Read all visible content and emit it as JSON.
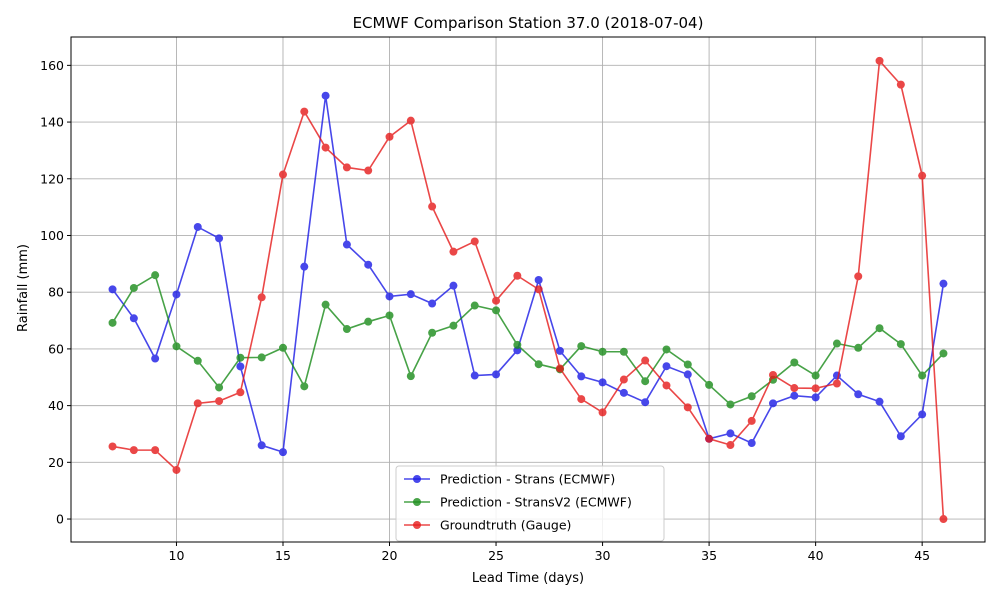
{
  "chart_data": {
    "type": "line",
    "title": "ECMWF Comparison Station 37.0 (2018-07-04)",
    "xlabel": "Lead Time (days)",
    "ylabel": "Rainfall (mm)",
    "xlim": [
      5.05,
      47.95
    ],
    "ylim": [
      -8.1,
      170.0
    ],
    "xticks": [
      10,
      15,
      20,
      25,
      30,
      35,
      40,
      45
    ],
    "yticks": [
      0,
      20,
      40,
      60,
      80,
      100,
      120,
      140,
      160
    ],
    "grid": true,
    "legend_position": "lower center",
    "x": [
      7,
      8,
      9,
      10,
      11,
      12,
      13,
      14,
      15,
      16,
      17,
      18,
      19,
      20,
      21,
      22,
      23,
      24,
      25,
      26,
      27,
      28,
      29,
      30,
      31,
      32,
      33,
      34,
      35,
      36,
      37,
      38,
      39,
      40,
      41,
      42,
      43,
      44,
      45,
      46
    ],
    "series": [
      {
        "name": "Prediction - Strans (ECMWF)",
        "color": "#1a1ae6",
        "values": [
          81,
          70.8,
          56.6,
          79.2,
          103,
          99,
          53.8,
          26,
          23.6,
          89,
          149.3,
          96.8,
          89.7,
          78.5,
          79.3,
          76,
          82.3,
          50.6,
          51,
          59.5,
          84.3,
          59.3,
          50.3,
          48.2,
          44.5,
          41.2,
          53.9,
          51,
          28.3,
          30.2,
          26.8,
          40.8,
          43.5,
          42.9,
          50.6,
          44,
          41.4,
          29.2,
          36.9,
          83
        ]
      },
      {
        "name": "Prediction - StransV2 (ECMWF)",
        "color": "#1a8c1a",
        "values": [
          69.2,
          81.5,
          86,
          60.9,
          55.8,
          46.4,
          56.9,
          57,
          60.4,
          46.8,
          75.6,
          67,
          69.6,
          71.8,
          50.4,
          65.7,
          68.2,
          75.3,
          73.6,
          61.4,
          54.6,
          52.8,
          61,
          59,
          59,
          48.6,
          59.8,
          54.5,
          47.3,
          40.4,
          43.3,
          49.1,
          55.2,
          50.6,
          61.9,
          60.4,
          67.3,
          61.7,
          50.6,
          58.4
        ]
      },
      {
        "name": "Groundtruth (Gauge)",
        "color": "#e61a1a",
        "values": [
          25.6,
          24.3,
          24.3,
          17.3,
          40.8,
          41.6,
          44.7,
          78.2,
          121.5,
          143.7,
          131,
          124,
          122.9,
          134.8,
          140.5,
          110.2,
          94.3,
          97.9,
          77,
          85.8,
          81,
          53.1,
          42.3,
          37.6,
          49.2,
          55.9,
          47.1,
          39.4,
          28.3,
          26.1,
          34.6,
          50.8,
          46.2,
          46.1,
          47.8,
          85.6,
          161.6,
          153.2,
          121.1,
          0
        ]
      }
    ]
  }
}
